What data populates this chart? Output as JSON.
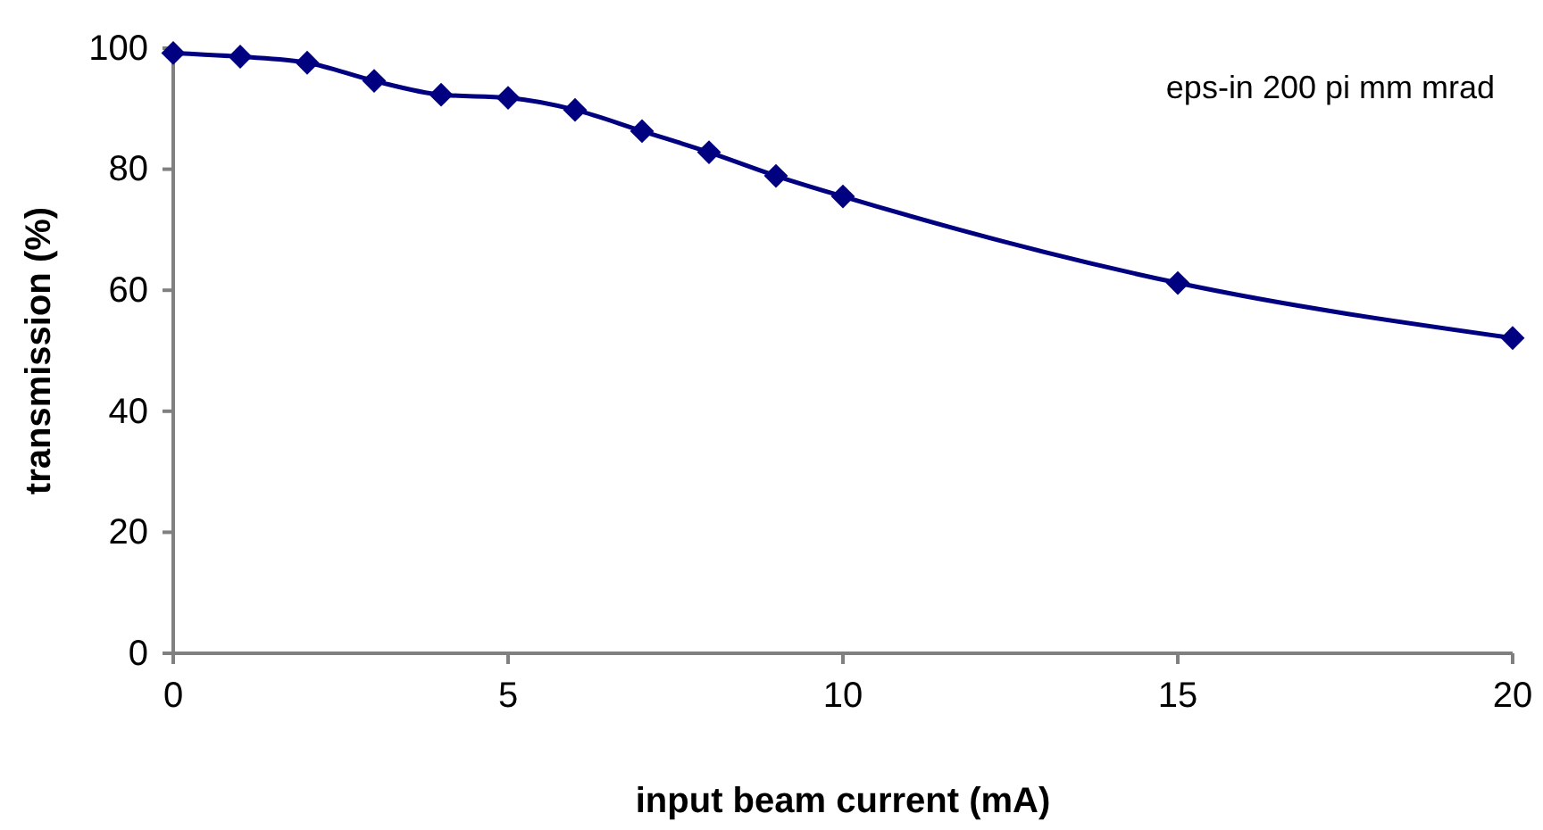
{
  "chart_data": {
    "type": "line",
    "xlabel": "input beam current (mA)",
    "ylabel": "transmission (%)",
    "annotations": [
      "eps-in 200 pi mm mrad"
    ],
    "x": [
      0,
      1,
      2,
      3,
      4,
      5,
      6,
      7,
      8,
      9,
      10,
      15,
      20
    ],
    "series": [
      {
        "color": "#000080",
        "values": [
          99.2,
          98.6,
          97.6,
          94.6,
          92.3,
          91.8,
          89.8,
          86.3,
          82.8,
          78.9,
          75.5,
          61.2,
          52.1
        ]
      }
    ],
    "xlim": [
      0,
      20
    ],
    "xticks": [
      0,
      5,
      10,
      15,
      20
    ],
    "ylim": [
      0,
      100
    ],
    "yticks": [
      0,
      20,
      40,
      60,
      80,
      100
    ],
    "grid": false,
    "marker": "diamond",
    "line_style": "solid"
  }
}
